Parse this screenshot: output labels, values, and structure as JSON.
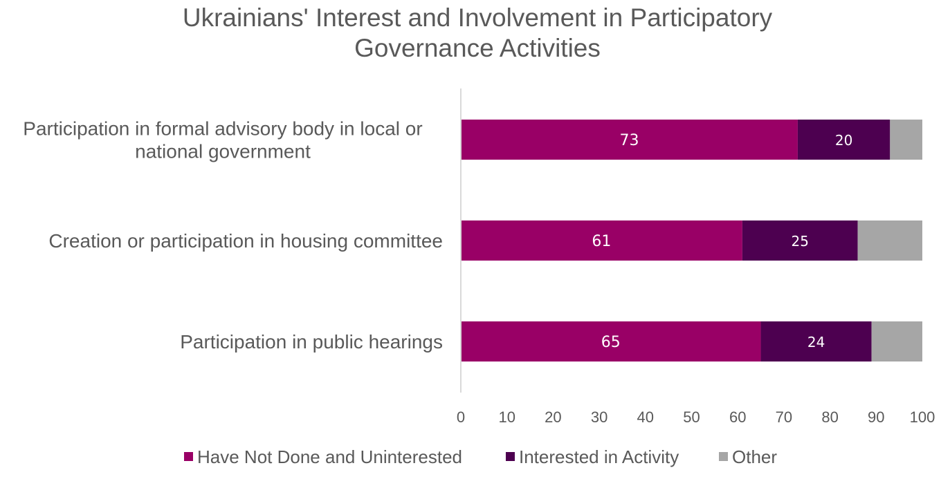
{
  "chart_data": {
    "type": "bar",
    "orientation": "horizontal",
    "stacked": true,
    "title": "Ukrainians' Interest and Involvement in Participatory Governance Activities",
    "title_lines": [
      "Ukrainians' Interest and Involvement in Participatory",
      "Governance Activities"
    ],
    "categories": [
      [
        "Participation in formal advisory body in local or",
        "national government"
      ],
      [
        "Creation or participation in housing committee"
      ],
      [
        "Participation in public hearings"
      ]
    ],
    "series": [
      {
        "name": "Have Not Done and Uninterested",
        "color": "#990066",
        "values": [
          73,
          61,
          65
        ],
        "labels": [
          "73",
          "61",
          "65"
        ]
      },
      {
        "name": "Interested in Activity",
        "color": "#4D0050",
        "values": [
          20,
          25,
          24
        ],
        "labels": [
          "20",
          "25",
          "24"
        ]
      },
      {
        "name": "Other",
        "color": "#A6A6A6",
        "values": [
          7,
          14,
          11
        ],
        "labels": [
          "",
          "",
          ""
        ]
      }
    ],
    "xlim": [
      0,
      100
    ],
    "xticks": [
      "0",
      "10",
      "20",
      "30",
      "40",
      "50",
      "60",
      "70",
      "80",
      "90",
      "100"
    ],
    "grid": false,
    "legend_position": "bottom",
    "axis_color": "#D9D9D9"
  }
}
